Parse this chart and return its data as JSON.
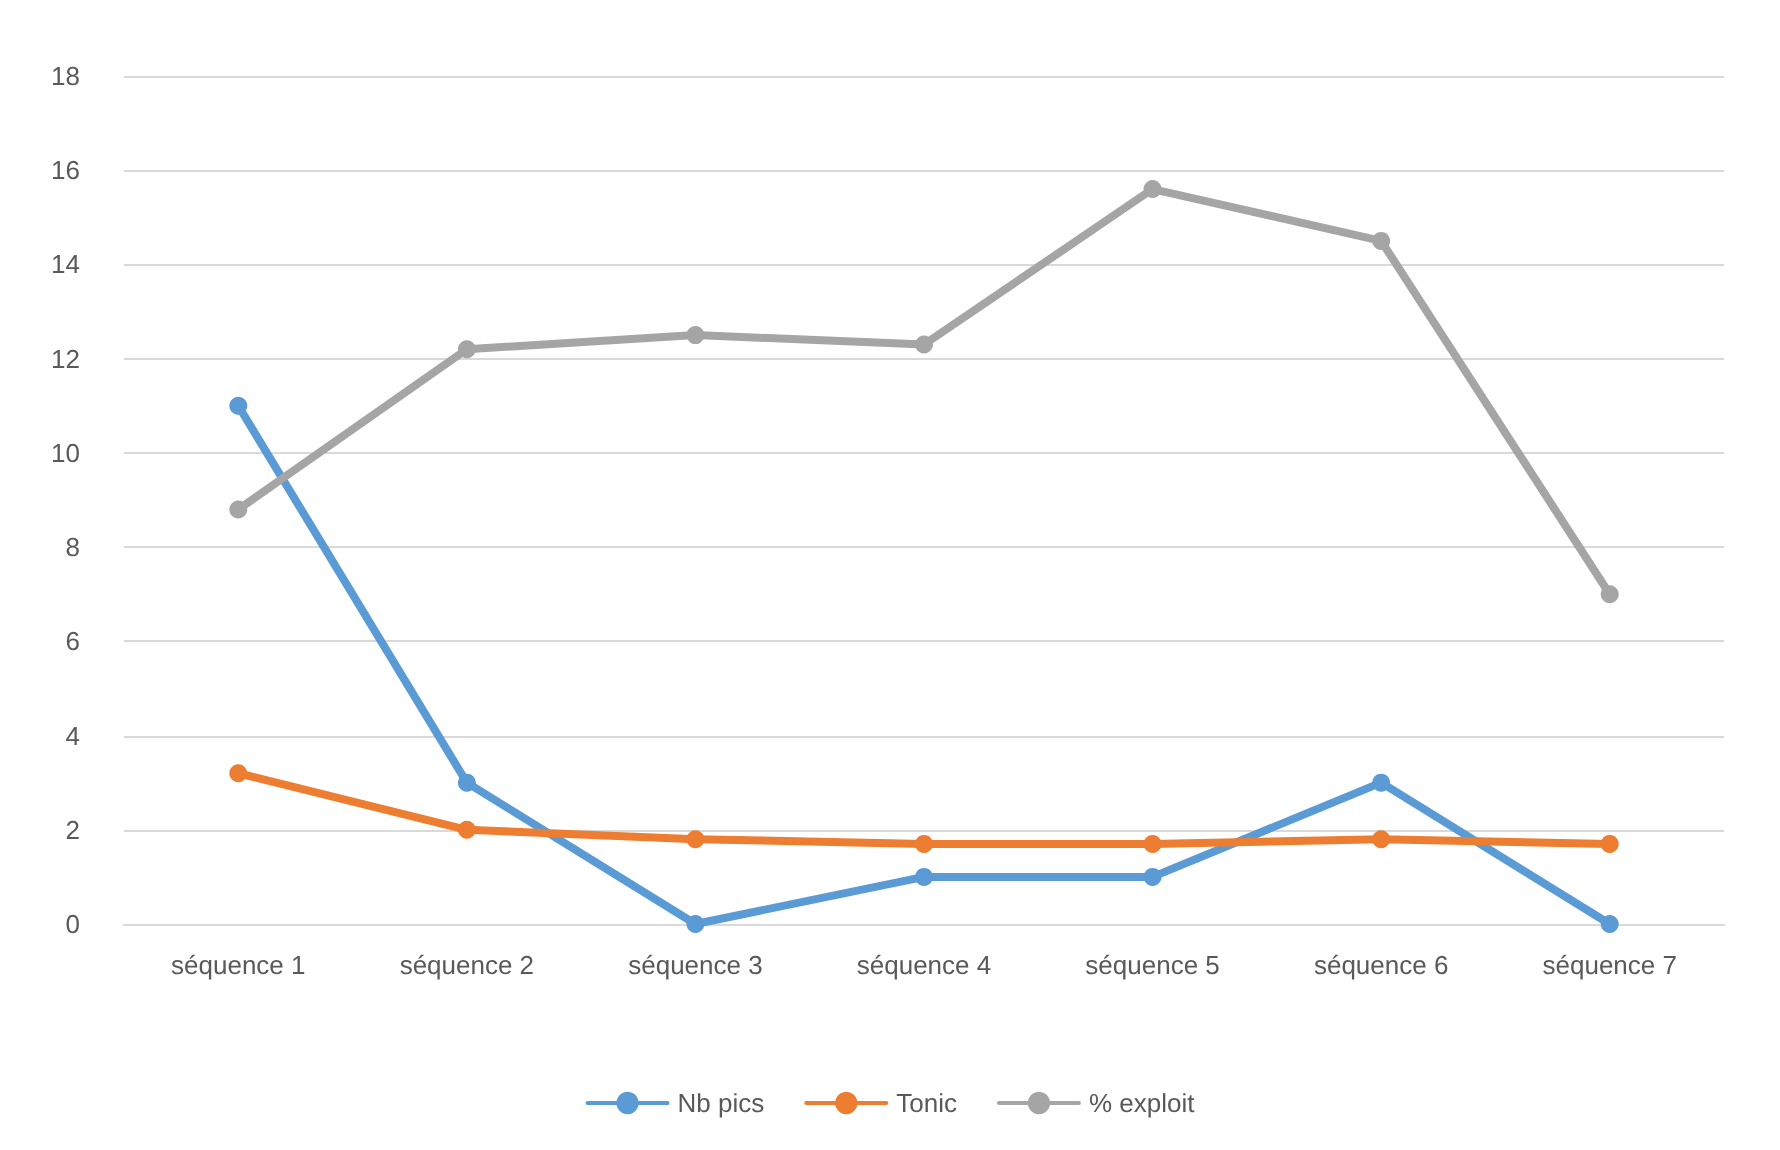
{
  "chart_data": {
    "type": "line",
    "categories": [
      "séquence 1",
      "séquence 2",
      "séquence 3",
      "séquence 4",
      "séquence 5",
      "séquence 6",
      "séquence 7"
    ],
    "series": [
      {
        "name": "Nb pics",
        "color": "#5b9bd5",
        "values": [
          11,
          3,
          0,
          1,
          1,
          3,
          0
        ]
      },
      {
        "name": "Tonic",
        "color": "#ed7d31",
        "values": [
          3.2,
          2.0,
          1.8,
          1.7,
          1.7,
          1.8,
          1.7
        ]
      },
      {
        "name": "% exploit",
        "color": "#a5a5a5",
        "values": [
          8.8,
          12.2,
          12.5,
          12.3,
          15.6,
          14.5,
          7.0
        ]
      }
    ],
    "ylim": [
      0,
      18
    ],
    "yticks": [
      0,
      2,
      4,
      6,
      8,
      10,
      12,
      14,
      16,
      18
    ],
    "grid": "y",
    "legend": "bottom",
    "marker": "circle",
    "line_style": "solid"
  }
}
